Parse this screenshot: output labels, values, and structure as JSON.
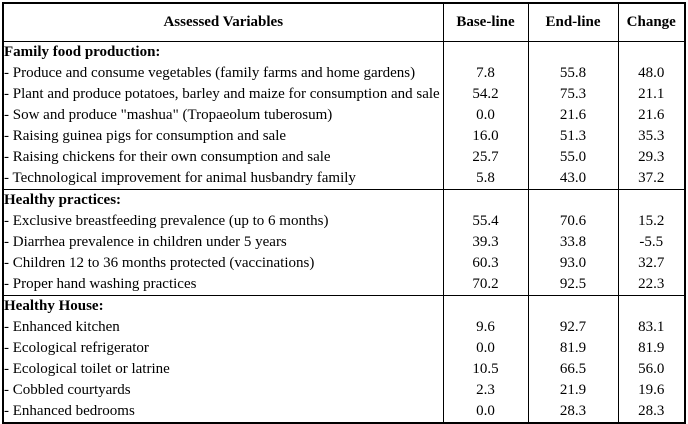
{
  "table": {
    "headers": {
      "variable": "Assessed Variables",
      "baseline": "Base-line",
      "endline": "End-line",
      "change": "Change"
    },
    "sections": [
      {
        "title": "Family food production:",
        "items": [
          {
            "label": "- Produce and consume vegetables (family farms and home gardens)",
            "baseline": "7.8",
            "endline": "55.8",
            "change": "48.0"
          },
          {
            "label": "- Plant and produce potatoes, barley and maize for consumption and sale",
            "baseline": "54.2",
            "endline": "75.3",
            "change": "21.1"
          },
          {
            "label": "- Sow and produce \"mashua\" (Tropaeolum tuberosum)",
            "baseline": "0.0",
            "endline": "21.6",
            "change": "21.6"
          },
          {
            "label": "- Raising guinea pigs for consumption and sale",
            "baseline": "16.0",
            "endline": "51.3",
            "change": "35.3"
          },
          {
            "label": "- Raising chickens for their own consumption and sale",
            "baseline": "25.7",
            "endline": "55.0",
            "change": "29.3"
          },
          {
            "label": "- Technological improvement for animal husbandry family",
            "baseline": "5.8",
            "endline": "43.0",
            "change": "37.2"
          }
        ]
      },
      {
        "title": "Healthy practices:",
        "items": [
          {
            "label": "- Exclusive breastfeeding prevalence (up to 6 months)",
            "baseline": "55.4",
            "endline": "70.6",
            "change": "15.2"
          },
          {
            "label": "- Diarrhea prevalence in children under 5 years",
            "baseline": "39.3",
            "endline": "33.8",
            "change": "-5.5"
          },
          {
            "label": "- Children 12 to 36 months protected (vaccinations)",
            "baseline": "60.3",
            "endline": "93.0",
            "change": "32.7"
          },
          {
            "label": "- Proper hand washing practices",
            "baseline": "70.2",
            "endline": "92.5",
            "change": "22.3"
          }
        ]
      },
      {
        "title": "Healthy House:",
        "items": [
          {
            "label": "- Enhanced kitchen",
            "baseline": "9.6",
            "endline": "92.7",
            "change": "83.1"
          },
          {
            "label": "- Ecological refrigerator",
            "baseline": "0.0",
            "endline": "81.9",
            "change": "81.9"
          },
          {
            "label": "- Ecological toilet or latrine",
            "baseline": "10.5",
            "endline": "66.5",
            "change": "56.0"
          },
          {
            "label": "- Cobbled courtyards",
            "baseline": "2.3",
            "endline": "21.9",
            "change": "19.6"
          },
          {
            "label": "- Enhanced bedrooms",
            "baseline": "0.0",
            "endline": "28.3",
            "change": "28.3"
          }
        ]
      }
    ]
  }
}
